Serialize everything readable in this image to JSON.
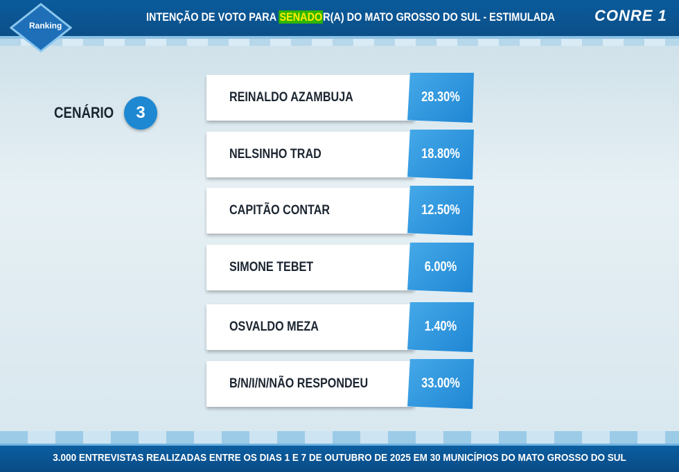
{
  "header": {
    "logo": "Ranking",
    "title_parts": [
      "INTENÇÃO DE VOTO PARA ",
      "SENADO",
      "R(A) DO MATO GROSSO DO SUL - ESTIMULADA"
    ],
    "brand": "CONRE 1"
  },
  "scenario": {
    "label": "CENÁRIO",
    "number": "3"
  },
  "rows": [
    [
      "REINALDO AZAMBUJA",
      "28.30%"
    ],
    [
      "NELSINHO TRAD",
      "18.80%"
    ],
    [
      "CAPITÃO CONTAR",
      "12.50%"
    ],
    [
      "SIMONE TEBET",
      "6.00%"
    ],
    [
      "OSVALDO MEZA",
      "1.40%"
    ],
    [
      "B/N/I/N/NÃO RESPONDEU",
      "33.00%"
    ]
  ],
  "footer": "3.000 ENTREVISTAS REALIZADAS ENTRE OS DIAS 1 E 7 DE OUTUBRO DE 2025 EM 30 MUNICÍPIOS DO MATO GROSSO DO SUL"
}
